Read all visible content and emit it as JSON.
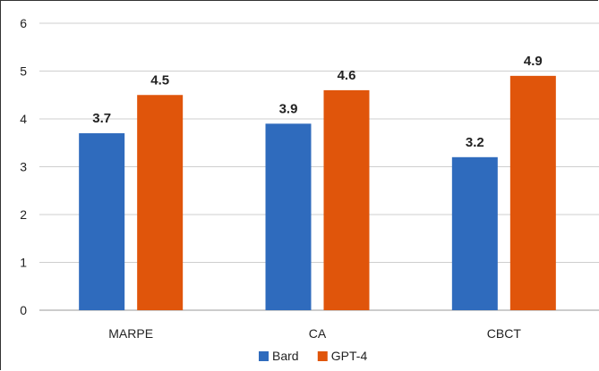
{
  "chart_data": {
    "type": "bar",
    "categories": [
      "MARPE",
      "CA",
      "CBCT"
    ],
    "series": [
      {
        "name": "Bard",
        "values": [
          3.7,
          3.9,
          3.2
        ],
        "color": "#2f6bbd"
      },
      {
        "name": "GPT-4",
        "values": [
          4.5,
          4.6,
          4.9
        ],
        "color": "#e0550b"
      }
    ],
    "ylim": [
      0,
      6
    ],
    "yticks": [
      "0",
      "1",
      "2",
      "3",
      "4",
      "5",
      "6"
    ],
    "value_labels": [
      [
        "3.7",
        "3.9",
        "3.2"
      ],
      [
        "4.5",
        "4.6",
        "4.9"
      ]
    ],
    "grid": true,
    "legend": "bottom-center"
  }
}
